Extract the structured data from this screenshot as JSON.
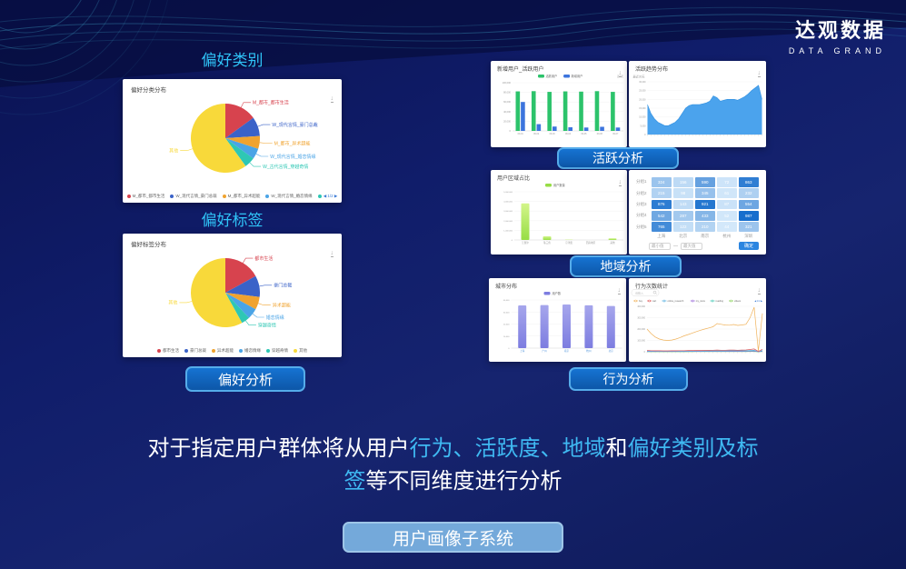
{
  "logo": {
    "title": "达观数据",
    "subtitle": "DATA GRAND"
  },
  "section_labels": {
    "pref_category": "偏好类别",
    "pref_tag": "偏好标签"
  },
  "buttons": {
    "preference": "偏好分析",
    "activity": "活跃分析",
    "region": "地域分析",
    "behavior": "行为分析",
    "system": "用户画像子系统"
  },
  "description": {
    "segments": [
      {
        "text": "对于指定用户群体将从用户",
        "color": "#ffffff"
      },
      {
        "text": "行为、",
        "color": "#3fb9f2"
      },
      {
        "text": "活跃度、",
        "color": "#3fb9f2"
      },
      {
        "text": "地域",
        "color": "#3fb9f2"
      },
      {
        "text": "和",
        "color": "#ffffff"
      },
      {
        "text": "偏好类别及标签",
        "color": "#3fb9f2"
      },
      {
        "text": "等不同维度进行分析",
        "color": "#ffffff"
      }
    ]
  },
  "colors": {
    "accent_cyan": "#2fc3f7",
    "button_blue": "#0e63bf",
    "button_border": "#55acea",
    "panel_bg": "#ffffff"
  },
  "chart_data": [
    {
      "id": "preference-category-pie",
      "type": "pie",
      "title": "偏好分类分布",
      "slices": [
        {
          "label": "M_都市_都市生活",
          "value": 15,
          "color": "#d7434e"
        },
        {
          "label": "W_现代言情_豪门总裁",
          "value": 9,
          "color": "#3a62c8"
        },
        {
          "label": "M_都市_异术超能",
          "value": 6,
          "color": "#f0a32f"
        },
        {
          "label": "W_现代言情_婚恋情缘",
          "value": 5,
          "color": "#4aa4e6"
        },
        {
          "label": "W_古代言情_穿越奇情",
          "value": 5,
          "color": "#2ec7b4"
        },
        {
          "label": "其他",
          "value": 60,
          "color": "#f8d93a"
        }
      ],
      "legend_visible": 4,
      "legend_page": "1/2"
    },
    {
      "id": "preference-tag-pie",
      "type": "pie",
      "title": "偏好标签分布",
      "slices": [
        {
          "label": "都市生活",
          "value": 17,
          "color": "#d7434e"
        },
        {
          "label": "豪门总裁",
          "value": 10,
          "color": "#3a62c8"
        },
        {
          "label": "异术超能",
          "value": 6,
          "color": "#f0a32f"
        },
        {
          "label": "婚恋情缘",
          "value": 5,
          "color": "#4aa4e6"
        },
        {
          "label": "穿越奇情",
          "value": 4,
          "color": "#2ec7b4"
        },
        {
          "label": "其他",
          "value": 58,
          "color": "#f8d93a"
        }
      ],
      "legend_visible": 6
    },
    {
      "id": "active-users-bar",
      "type": "grouped-bar",
      "title": "新增用户_活跃用户",
      "header_right": "近7天",
      "categories": [
        "09-01",
        "09-02",
        "09-03",
        "09-04",
        "09-05",
        "09-06",
        "09-07"
      ],
      "series": [
        {
          "name": "活跃用户",
          "color": "#2cc36b",
          "values": [
            82000,
            82500,
            81000,
            82000,
            81500,
            82500,
            81000
          ]
        },
        {
          "name": "新增用户",
          "color": "#3c74dd",
          "values": [
            60000,
            14000,
            9000,
            7500,
            7000,
            8500,
            7000
          ]
        }
      ],
      "ylim": [
        0,
        100000
      ],
      "yticks": [
        "100,000",
        "80,000",
        "60,000",
        "40,000",
        "20,000",
        "0"
      ]
    },
    {
      "id": "active-trend-area",
      "type": "area",
      "title": "活跃趋势分布",
      "subtitle": "最近30天",
      "color": "#4ba3ed",
      "line_color": "#2f8fe0",
      "unit": 1000,
      "ylim": [
        0,
        30000
      ],
      "yticks": [
        "30,000",
        "25,000",
        "20,000",
        "15,000",
        "10,000",
        "5,000",
        "0"
      ],
      "values": [
        17,
        12,
        9,
        7,
        6,
        5,
        5,
        6,
        7,
        9,
        12,
        15,
        16.5,
        17,
        17,
        17,
        17.5,
        18,
        19,
        22,
        21,
        19,
        19.5,
        20,
        20,
        20,
        19.5,
        20.5,
        21.5,
        23,
        25,
        26.5,
        28,
        20
      ]
    },
    {
      "id": "region-user-bar",
      "type": "bar",
      "title": "用户区域占比",
      "legend": "用户数量",
      "bar_colors": [
        "#d3f58a",
        "#97dd45"
      ],
      "xcolor": "#999999",
      "categories": [
        "江浙沪",
        "珠三角",
        "京津冀",
        "西南地区",
        "其他"
      ],
      "values": [
        3800000,
        380000,
        30000,
        20000,
        170000
      ],
      "ylim": [
        0,
        5000000
      ],
      "yticks": [
        "5,000,000",
        "4,000,000",
        "3,000,000",
        "2,000,000",
        "1,000,000",
        "0"
      ]
    },
    {
      "id": "region-heatmap",
      "type": "heatmap",
      "row_labels": [
        "分组1",
        "分组2",
        "分组3",
        "分组4",
        "分组5"
      ],
      "col_labels": [
        "上海",
        "北京",
        "南京",
        "杭州",
        "深圳"
      ],
      "values": [
        [
          324,
          156,
          590,
          72,
          863
        ],
        [
          215,
          98,
          345,
          61,
          232
        ],
        [
          876,
          143,
          921,
          87,
          554
        ],
        [
          542,
          287,
          433,
          52,
          987
        ],
        [
          765,
          122,
          210,
          44,
          321
        ]
      ],
      "controls": {
        "min": "最小值",
        "dash": "—",
        "max": "最大值",
        "submit": "确定"
      }
    },
    {
      "id": "city-bar",
      "type": "bar",
      "title": "城市分布",
      "legend": "用户数",
      "bar_colors": [
        "#a6a6ec",
        "#7d7de0"
      ],
      "xcolor": "#4a90d9",
      "left": 24,
      "categories": [
        "上海",
        "广州",
        "南京",
        "杭州",
        "北京"
      ],
      "values": [
        35500,
        35800,
        36200,
        35600,
        35000
      ],
      "ylim": [
        0,
        40000
      ],
      "yticks": [
        "40,000",
        "30,000",
        "20,000",
        "10,000",
        "0"
      ]
    },
    {
      "id": "behavior-line",
      "type": "line",
      "title": "行为次数统计",
      "search_placeholder": "请输入",
      "unit": 1000,
      "ylim": [
        0,
        400000
      ],
      "legend_page": "1/2",
      "yticks": [
        "400,000",
        "300,000",
        "200,000",
        "100,000",
        "0"
      ],
      "series": [
        {
          "name": "buy",
          "color": "#f0b25a",
          "values": [
            200,
            160,
            130,
            112,
            103,
            100,
            103,
            112,
            125,
            140,
            152,
            165,
            178,
            190,
            200,
            210,
            220,
            248,
            242,
            235,
            234,
            240,
            232,
            236,
            242,
            300,
            392,
            8,
            338
          ]
        },
        {
          "name": "cart",
          "color": "#e05a5a",
          "values": [
            12,
            10,
            9,
            9,
            8,
            8,
            9,
            9,
            10,
            10,
            11,
            11,
            12,
            12,
            13,
            13,
            14,
            15,
            14,
            14,
            15,
            15,
            14,
            15,
            16,
            20,
            25,
            3,
            22
          ]
        },
        {
          "name": "online_research",
          "color": "#5ab0e0",
          "values": [
            6,
            5,
            5,
            4,
            4,
            4,
            5,
            5,
            5,
            6,
            6,
            6,
            7,
            7,
            7,
            8,
            8,
            8,
            8,
            8,
            9,
            9,
            9,
            9,
            9,
            11,
            13,
            2,
            11
          ]
        },
        {
          "name": "my_store",
          "color": "#9a6ad8",
          "values": [
            3,
            3,
            3,
            3,
            3,
            3,
            3,
            3,
            4,
            4,
            4,
            4,
            4,
            4,
            5,
            5,
            5,
            5,
            5,
            5,
            5,
            5,
            5,
            5,
            6,
            7,
            8,
            1,
            7
          ]
        },
        {
          "name": "reading",
          "color": "#46c8b4",
          "values": [
            2,
            2,
            2,
            2,
            2,
            2,
            2,
            2,
            2,
            2,
            3,
            3,
            3,
            3,
            3,
            3,
            3,
            3,
            3,
            3,
            3,
            3,
            3,
            3,
            3,
            4,
            5,
            1,
            4
          ]
        },
        {
          "name": "videos",
          "color": "#88d058",
          "values": [
            1,
            1,
            1,
            1,
            1,
            1,
            1,
            1,
            1,
            1,
            1,
            1,
            2,
            2,
            2,
            2,
            2,
            2,
            2,
            2,
            2,
            2,
            2,
            2,
            2,
            3,
            3,
            0,
            3
          ]
        }
      ]
    }
  ]
}
